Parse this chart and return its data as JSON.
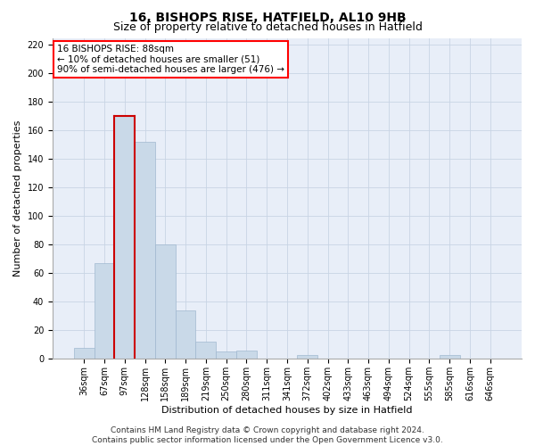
{
  "title": "16, BISHOPS RISE, HATFIELD, AL10 9HB",
  "subtitle": "Size of property relative to detached houses in Hatfield",
  "xlabel": "Distribution of detached houses by size in Hatfield",
  "ylabel": "Number of detached properties",
  "categories": [
    "36sqm",
    "67sqm",
    "97sqm",
    "128sqm",
    "158sqm",
    "189sqm",
    "219sqm",
    "250sqm",
    "280sqm",
    "311sqm",
    "341sqm",
    "372sqm",
    "402sqm",
    "433sqm",
    "463sqm",
    "494sqm",
    "524sqm",
    "555sqm",
    "585sqm",
    "616sqm",
    "646sqm"
  ],
  "bar_heights": [
    8,
    67,
    170,
    152,
    80,
    34,
    12,
    5,
    6,
    0,
    0,
    3,
    0,
    0,
    0,
    0,
    0,
    0,
    3,
    0,
    0
  ],
  "bar_color": "#c9d9e8",
  "bar_edge_color": "#a0b8d0",
  "highlight_bar_index": 2,
  "highlight_bar_edge_color": "#cc0000",
  "annotation_box_text": "16 BISHOPS RISE: 88sqm\n← 10% of detached houses are smaller (51)\n90% of semi-detached houses are larger (476) →",
  "ylim": [
    0,
    225
  ],
  "yticks": [
    0,
    20,
    40,
    60,
    80,
    100,
    120,
    140,
    160,
    180,
    200,
    220
  ],
  "grid_color": "#c8d4e4",
  "background_color": "#e8eef8",
  "footer_line1": "Contains HM Land Registry data © Crown copyright and database right 2024.",
  "footer_line2": "Contains public sector information licensed under the Open Government Licence v3.0.",
  "title_fontsize": 10,
  "subtitle_fontsize": 9,
  "axis_label_fontsize": 8,
  "tick_fontsize": 7,
  "annotation_fontsize": 7.5,
  "footer_fontsize": 6.5
}
